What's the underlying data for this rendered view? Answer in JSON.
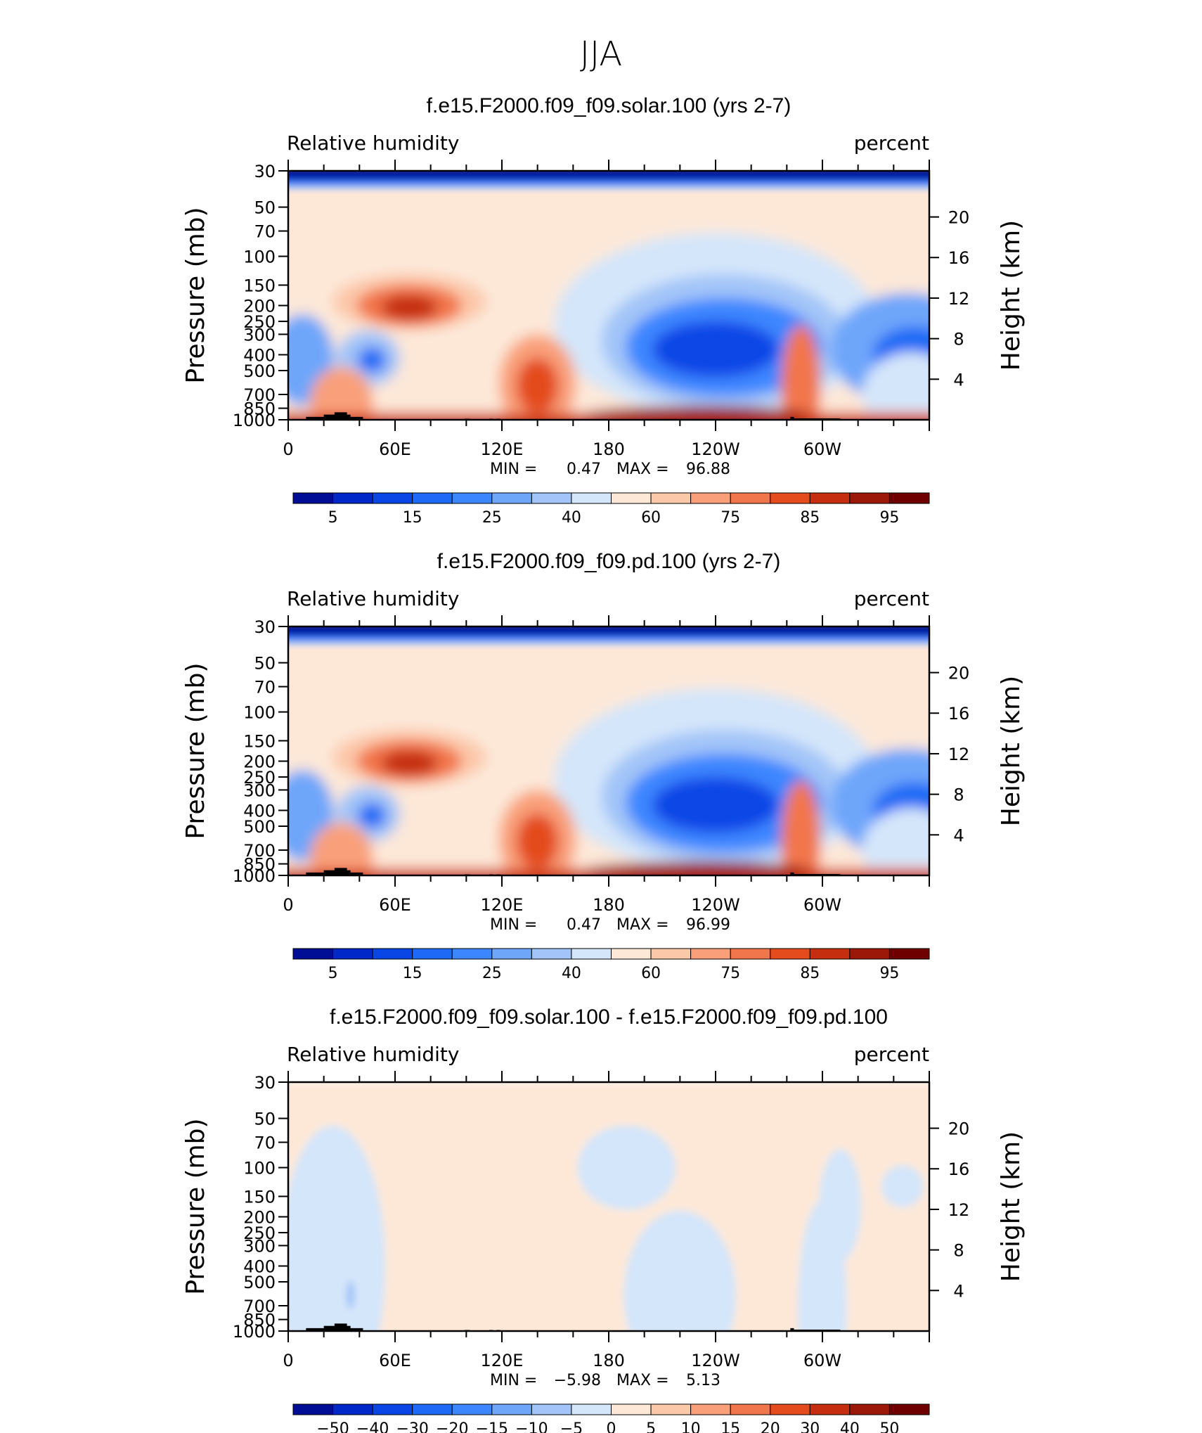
{
  "figure": {
    "title": "JJA"
  },
  "colors": {
    "rh_scale": [
      "#000e96",
      "#0028c8",
      "#0a46e6",
      "#1e6af6",
      "#3c86ff",
      "#6ea6fa",
      "#a2c4f8",
      "#d4e6fa",
      "#fde8d8",
      "#fcc8aa",
      "#f9a07a",
      "#f2764c",
      "#e44c1e",
      "#c52e0e",
      "#9c1808",
      "#6e0000"
    ],
    "diff_scale": [
      "#000e96",
      "#0028c8",
      "#0a46e6",
      "#1e6af6",
      "#3c86ff",
      "#6ea6fa",
      "#a2c4f8",
      "#d4e6fa",
      "#fde8d8",
      "#fcc8aa",
      "#f9a07a",
      "#f2764c",
      "#e44c1e",
      "#c52e0e",
      "#9c1808",
      "#6e0000"
    ]
  },
  "chart_data": [
    {
      "type": "heatmap",
      "title": "f.e15.F2000.f09_f09.solar.100 (yrs 2-7)",
      "left_string": "Relative humidity",
      "right_string": "percent",
      "ylabel": "Pressure (mb)",
      "y2label": "Height (km)",
      "x_ticks": [
        "0",
        "60E",
        "120E",
        "180",
        "120W",
        "60W"
      ],
      "y_ticks": [
        "30",
        "50",
        "70",
        "100",
        "150",
        "200",
        "250",
        "300",
        "400",
        "500",
        "700",
        "850",
        "1000"
      ],
      "y2_ticks": [
        "20",
        "16",
        "12",
        "8",
        "4"
      ],
      "xlim": [
        0,
        360
      ],
      "ylim": [
        1000,
        30
      ],
      "y_scale": "log",
      "min_label": "MIN =",
      "min": "0.47",
      "max_label": "MAX =",
      "max": "96.88",
      "colorbar_labels": [
        "5",
        "15",
        "25",
        "40",
        "60",
        "75",
        "85",
        "95"
      ]
    },
    {
      "type": "heatmap",
      "title": "f.e15.F2000.f09_f09.pd.100 (yrs 2-7)",
      "left_string": "Relative humidity",
      "right_string": "percent",
      "ylabel": "Pressure (mb)",
      "y2label": "Height (km)",
      "x_ticks": [
        "0",
        "60E",
        "120E",
        "180",
        "120W",
        "60W"
      ],
      "y_ticks": [
        "30",
        "50",
        "70",
        "100",
        "150",
        "200",
        "250",
        "300",
        "400",
        "500",
        "700",
        "850",
        "1000"
      ],
      "y2_ticks": [
        "20",
        "16",
        "12",
        "8",
        "4"
      ],
      "xlim": [
        0,
        360
      ],
      "ylim": [
        1000,
        30
      ],
      "y_scale": "log",
      "min_label": "MIN =",
      "min": "0.47",
      "max_label": "MAX =",
      "max": "96.99",
      "colorbar_labels": [
        "5",
        "15",
        "25",
        "40",
        "60",
        "75",
        "85",
        "95"
      ]
    },
    {
      "type": "heatmap",
      "title": "f.e15.F2000.f09_f09.solar.100 - f.e15.F2000.f09_f09.pd.100",
      "left_string": "Relative humidity",
      "right_string": "percent",
      "ylabel": "Pressure (mb)",
      "y2label": "Height (km)",
      "x_ticks": [
        "0",
        "60E",
        "120E",
        "180",
        "120W",
        "60W"
      ],
      "y_ticks": [
        "30",
        "50",
        "70",
        "100",
        "150",
        "200",
        "250",
        "300",
        "400",
        "500",
        "700",
        "850",
        "1000"
      ],
      "y2_ticks": [
        "20",
        "16",
        "12",
        "8",
        "4"
      ],
      "xlim": [
        0,
        360
      ],
      "ylim": [
        1000,
        30
      ],
      "y_scale": "log",
      "min_label": "MIN =",
      "min": "−5.98",
      "max_label": "MAX =",
      "max": "5.13",
      "colorbar_labels": [
        "−50",
        "−40",
        "−30",
        "−20",
        "−15",
        "−10",
        "−5",
        "0",
        "5",
        "10",
        "15",
        "20",
        "30",
        "40",
        "50"
      ]
    }
  ]
}
